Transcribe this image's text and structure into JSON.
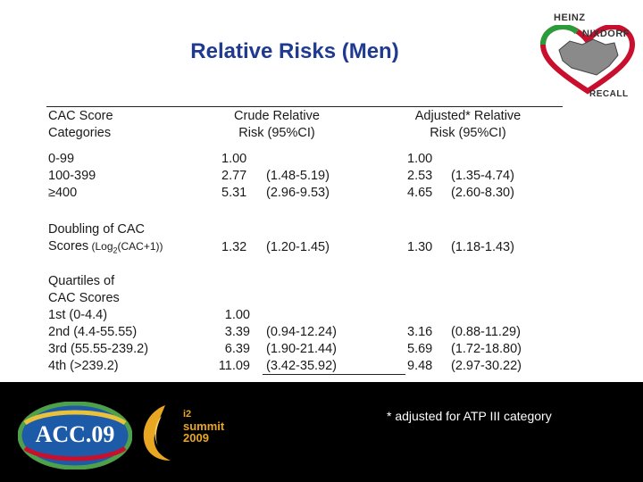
{
  "title": "Relative Risks (Men)",
  "logo": {
    "line1": "HEINZ",
    "line2": "NIXDORF",
    "line3": "RECALL"
  },
  "headers": {
    "col1": [
      "CAC Score",
      "Categories"
    ],
    "col2": [
      "Crude Relative",
      "Risk (95%CI)"
    ],
    "col3": [
      "Adjusted* Relative",
      "Risk (95%CI)"
    ]
  },
  "group_categories": {
    "labels": [
      "0-99",
      "100-399",
      "≥400"
    ],
    "crude_rr": [
      "1.00",
      "2.77",
      "5.31"
    ],
    "crude_ci": [
      "",
      "(1.48-5.19)",
      "(2.96-9.53)"
    ],
    "adj_rr": [
      "1.00",
      "2.53",
      "4.65"
    ],
    "adj_ci": [
      "",
      "(1.35-4.74)",
      "(2.60-8.30)"
    ]
  },
  "group_doubling": {
    "label1": "Doubling of CAC",
    "label2_main": "Scores",
    "label2_paren_pre": " (Log",
    "label2_sub": "2",
    "label2_paren_post": "(CAC+1))",
    "crude_rr": "1.32",
    "crude_ci": "(1.20-1.45)",
    "adj_rr": "1.30",
    "adj_ci": "(1.18-1.43)"
  },
  "group_quartiles": {
    "heading": [
      "Quartiles of",
      "CAC Scores"
    ],
    "labels": [
      "1st (0-4.4)",
      "2nd (4.4-55.55)",
      "3rd (55.55-239.2)",
      "4th (>239.2)"
    ],
    "crude_rr": [
      "1.00",
      "3.39",
      "6.39",
      "11.09"
    ],
    "crude_ci": [
      "",
      "(0.94-12.24)",
      "(1.90-21.44)",
      "(3.42-35.92)"
    ],
    "adj_rr": [
      "",
      "3.16",
      "5.69",
      "9.48"
    ],
    "adj_ci": [
      "",
      "(0.88-11.29)",
      "(1.72-18.80)",
      "(2.97-30.22)"
    ]
  },
  "footer": {
    "note": "* adjusted for  ATP III category",
    "acc_logo": "ACC.09",
    "i2_logo": {
      "line1": "i2",
      "line2": "summit",
      "line3": "2009"
    }
  },
  "colors": {
    "title": "#1f3a8f",
    "footer_bg": "#000000",
    "i2": "#e8a623",
    "heart": "#c8102e",
    "heart_green": "#2a9d3a"
  }
}
